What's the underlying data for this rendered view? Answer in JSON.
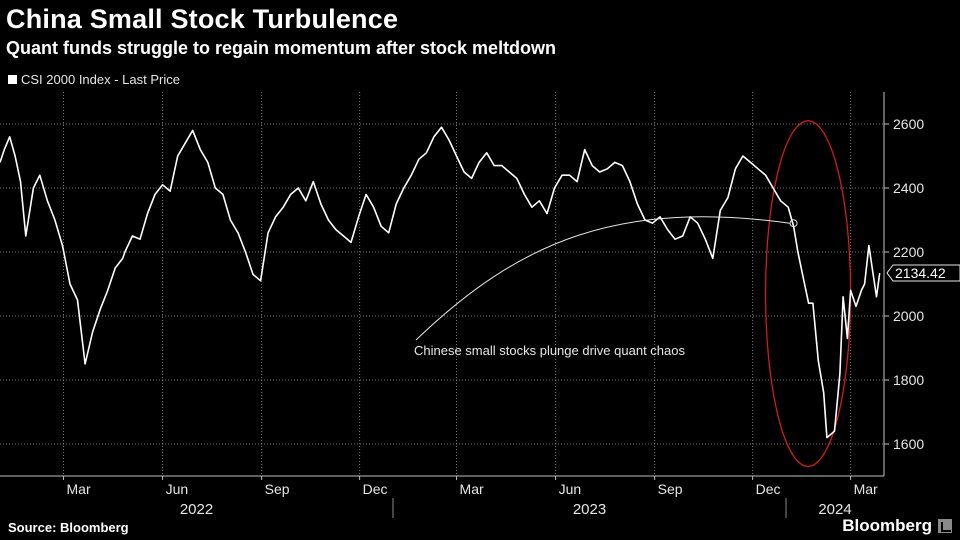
{
  "header": {
    "title": "China Small Stock Turbulence",
    "subtitle": "Quant funds struggle to regain momentum after stock meltdown"
  },
  "legend": {
    "label": "CSI 2000 Index - Last Price"
  },
  "footer": {
    "source": "Source: Bloomberg",
    "brand": "Bloomberg"
  },
  "colors": {
    "line": "#ffffff",
    "grid": "#7a7a7a",
    "ellipse": "#d01c1c",
    "background": "#000000"
  },
  "chart_data": {
    "type": "line",
    "title": "China Small Stock Turbulence",
    "subtitle": "Quant funds struggle to regain momentum after stock meltdown",
    "ylim": [
      1500,
      2700
    ],
    "yticks": [
      1600,
      1800,
      2000,
      2200,
      2400,
      2600
    ],
    "xlim": [
      "2022-01-01",
      "2024-04-01"
    ],
    "month_ticks": [
      {
        "label": "Mar",
        "date": "2022-03-01"
      },
      {
        "label": "Jun",
        "date": "2022-06-01"
      },
      {
        "label": "Sep",
        "date": "2022-09-01"
      },
      {
        "label": "Dec",
        "date": "2022-12-01"
      },
      {
        "label": "Mar",
        "date": "2023-03-01"
      },
      {
        "label": "Jun",
        "date": "2023-06-01"
      },
      {
        "label": "Sep",
        "date": "2023-09-01"
      },
      {
        "label": "Dec",
        "date": "2023-12-01"
      },
      {
        "label": "Mar",
        "date": "2024-03-01"
      }
    ],
    "years": [
      {
        "label": "2022",
        "start": "2022-01-01",
        "end": "2023-01-01"
      },
      {
        "label": "2023",
        "start": "2023-01-01",
        "end": "2024-01-01"
      },
      {
        "label": "2024",
        "start": "2024-01-01",
        "end": "2024-04-01"
      }
    ],
    "series": [
      {
        "name": "CSI 2000 Index - Last Price",
        "x": [
          "2022-01-01",
          "2022-01-05",
          "2022-01-10",
          "2022-01-15",
          "2022-01-20",
          "2022-01-25",
          "2022-02-01",
          "2022-02-07",
          "2022-02-14",
          "2022-02-21",
          "2022-02-28",
          "2022-03-07",
          "2022-03-14",
          "2022-03-21",
          "2022-03-28",
          "2022-04-04",
          "2022-04-11",
          "2022-04-18",
          "2022-04-25",
          "2022-04-27",
          "2022-05-04",
          "2022-05-11",
          "2022-05-18",
          "2022-05-25",
          "2022-06-01",
          "2022-06-08",
          "2022-06-15",
          "2022-06-22",
          "2022-06-29",
          "2022-07-06",
          "2022-07-13",
          "2022-07-20",
          "2022-07-27",
          "2022-08-03",
          "2022-08-10",
          "2022-08-17",
          "2022-08-24",
          "2022-08-31",
          "2022-09-07",
          "2022-09-14",
          "2022-09-21",
          "2022-09-28",
          "2022-10-05",
          "2022-10-12",
          "2022-10-19",
          "2022-10-26",
          "2022-11-02",
          "2022-11-09",
          "2022-11-16",
          "2022-11-23",
          "2022-11-30",
          "2022-12-07",
          "2022-12-14",
          "2022-12-21",
          "2022-12-28",
          "2023-01-04",
          "2023-01-11",
          "2023-01-18",
          "2023-01-25",
          "2023-02-01",
          "2023-02-08",
          "2023-02-15",
          "2023-02-22",
          "2023-03-01",
          "2023-03-08",
          "2023-03-15",
          "2023-03-22",
          "2023-03-29",
          "2023-04-05",
          "2023-04-12",
          "2023-04-19",
          "2023-04-26",
          "2023-05-03",
          "2023-05-10",
          "2023-05-17",
          "2023-05-24",
          "2023-05-31",
          "2023-06-07",
          "2023-06-14",
          "2023-06-21",
          "2023-06-28",
          "2023-07-05",
          "2023-07-12",
          "2023-07-19",
          "2023-07-26",
          "2023-08-02",
          "2023-08-09",
          "2023-08-16",
          "2023-08-23",
          "2023-08-30",
          "2023-09-06",
          "2023-09-13",
          "2023-09-20",
          "2023-09-27",
          "2023-10-04",
          "2023-10-11",
          "2023-10-18",
          "2023-10-25",
          "2023-11-01",
          "2023-11-08",
          "2023-11-15",
          "2023-11-22",
          "2023-11-29",
          "2023-12-06",
          "2023-12-13",
          "2023-12-20",
          "2023-12-27",
          "2024-01-03",
          "2024-01-08",
          "2024-01-12",
          "2024-01-17",
          "2024-01-22",
          "2024-01-26",
          "2024-01-31",
          "2024-02-05",
          "2024-02-08",
          "2024-02-15",
          "2024-02-20",
          "2024-02-23",
          "2024-02-27",
          "2024-03-01",
          "2024-03-06",
          "2024-03-11",
          "2024-03-14",
          "2024-03-18",
          "2024-03-21",
          "2024-03-25",
          "2024-03-28"
        ],
        "values": [
          2480,
          2520,
          2560,
          2500,
          2420,
          2250,
          2400,
          2440,
          2360,
          2300,
          2220,
          2100,
          2050,
          1850,
          1950,
          2020,
          2080,
          2150,
          2180,
          2200,
          2250,
          2240,
          2320,
          2380,
          2410,
          2390,
          2500,
          2540,
          2580,
          2520,
          2480,
          2400,
          2380,
          2300,
          2260,
          2200,
          2130,
          2110,
          2260,
          2310,
          2340,
          2380,
          2400,
          2360,
          2420,
          2350,
          2300,
          2270,
          2250,
          2230,
          2310,
          2380,
          2340,
          2280,
          2260,
          2350,
          2400,
          2440,
          2490,
          2510,
          2560,
          2590,
          2550,
          2500,
          2450,
          2430,
          2480,
          2510,
          2470,
          2470,
          2450,
          2430,
          2380,
          2340,
          2360,
          2320,
          2400,
          2440,
          2440,
          2420,
          2520,
          2470,
          2450,
          2460,
          2480,
          2470,
          2420,
          2350,
          2300,
          2290,
          2310,
          2270,
          2240,
          2250,
          2310,
          2290,
          2240,
          2180,
          2330,
          2370,
          2460,
          2500,
          2480,
          2460,
          2440,
          2400,
          2360,
          2340,
          2280,
          2200,
          2120,
          2040,
          2040,
          1860,
          1760,
          1620,
          1640,
          1820,
          2060,
          1930,
          2080,
          2030,
          2080,
          2100,
          2220,
          2150,
          2060,
          2134
        ]
      }
    ],
    "last_value": "2134.42",
    "annotations": [
      {
        "text": "Chinese small stocks plunge drive quant chaos",
        "target_date": "2024-01-08",
        "target_value": 2290
      }
    ],
    "highlight": {
      "shape": "ellipse",
      "start": "2023-12-13",
      "end": "2024-03-01",
      "y_min": 1530,
      "y_max": 2610
    }
  }
}
